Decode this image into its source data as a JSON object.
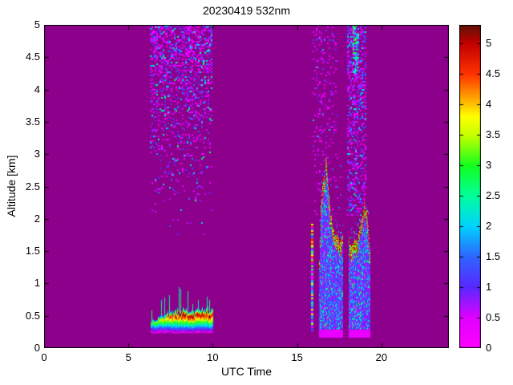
{
  "figure": {
    "background": "#ffffff",
    "axis_color": "#000000"
  },
  "chart_data": {
    "type": "heatmap",
    "title": "20230419 532nm",
    "xlabel": "UTC Time",
    "ylabel": "Altitude [km]",
    "xlim": [
      0,
      24
    ],
    "ylim": [
      0,
      5
    ],
    "xticks": [
      0,
      5,
      10,
      15,
      20
    ],
    "yticks": [
      0,
      0.5,
      1,
      1.5,
      2,
      2.5,
      3,
      3.5,
      4,
      4.5,
      5
    ],
    "background_color": "#8c008c",
    "noise_seed": 20230419,
    "colorbar": {
      "position": "right",
      "vmin": 0,
      "vmax": 5.3,
      "ticks": [
        0,
        0.5,
        1,
        1.5,
        2,
        2.5,
        3,
        3.5,
        4,
        4.5,
        5
      ]
    },
    "colormap_stops": [
      {
        "v": 0.0,
        "c": "#ff00ff"
      },
      {
        "v": 0.5,
        "c": "#e100ff"
      },
      {
        "v": 1.0,
        "c": "#5a28ff"
      },
      {
        "v": 1.5,
        "c": "#2e64ff"
      },
      {
        "v": 2.0,
        "c": "#00d2ff"
      },
      {
        "v": 2.5,
        "c": "#00ff9b"
      },
      {
        "v": 3.0,
        "c": "#14ff1e"
      },
      {
        "v": 3.5,
        "c": "#c8ff00"
      },
      {
        "v": 3.8,
        "c": "#ffff00"
      },
      {
        "v": 4.1,
        "c": "#ffa500"
      },
      {
        "v": 4.5,
        "c": "#ff3200"
      },
      {
        "v": 5.0,
        "c": "#c30000"
      },
      {
        "v": 5.3,
        "c": "#5f1207"
      }
    ],
    "features": [
      {
        "type": "speckle",
        "name": "morning-high-altitude-noise",
        "t": [
          6.25,
          9.95
        ],
        "alt": [
          1.7,
          5.0
        ],
        "density": [
          0.02,
          0.5
        ],
        "gamma": 1.6,
        "values": [
          [
            0.15,
            0.7,
            0.58
          ],
          [
            0.8,
            1.4,
            0.25
          ],
          [
            1.5,
            2.2,
            0.12
          ],
          [
            2.2,
            2.7,
            0.05
          ]
        ]
      },
      {
        "type": "speckle",
        "name": "evening-high-noise-left",
        "t": [
          15.9,
          17.45
        ],
        "alt": [
          3.05,
          5.0
        ],
        "density": [
          0.1,
          0.15
        ],
        "gamma": 1,
        "values": [
          [
            0.15,
            0.6,
            0.8
          ],
          [
            0.8,
            1.4,
            0.15
          ],
          [
            1.5,
            2.2,
            0.05
          ]
        ]
      },
      {
        "type": "speckle",
        "name": "evening-mid-specks",
        "t": [
          16.0,
          17.6
        ],
        "alt": [
          1.9,
          3.05
        ],
        "density": [
          0.05,
          0.07
        ],
        "gamma": 1,
        "values": [
          [
            0.15,
            0.6,
            0.85
          ],
          [
            0.8,
            1.6,
            0.15
          ]
        ]
      },
      {
        "type": "speckle",
        "name": "evening-high-noise-right",
        "t": [
          17.95,
          19.1
        ],
        "alt": [
          2.05,
          5.0
        ],
        "density": [
          0.32,
          0.48
        ],
        "gamma": 1,
        "values": [
          [
            0.15,
            0.7,
            0.55
          ],
          [
            0.8,
            1.5,
            0.3
          ],
          [
            1.5,
            2.3,
            0.15
          ]
        ]
      },
      {
        "type": "speckle",
        "name": "evening-cyan-streaks",
        "t": [
          18.32,
          18.62
        ],
        "alt": [
          4.25,
          5.0
        ],
        "density": [
          0.45,
          0.55
        ],
        "gamma": 1,
        "values": [
          [
            1.6,
            3.2,
            0.8
          ],
          [
            0.8,
            1.5,
            0.2
          ]
        ]
      },
      {
        "type": "layer",
        "name": "morning-surface-aerosol-layer",
        "t": [
          6.3,
          10.0
        ],
        "base": 0.26,
        "thick": [
          0.15,
          0.32
        ],
        "ramp_dur": 1.7,
        "peak": [
          3.3,
          5.1
        ],
        "peak_ramp_start": 6.4,
        "peak_ramp_dur": 1.6,
        "spike_prob": 0.16,
        "spike_max": 0.34,
        "fringe_v": [
          0.2,
          0.5
        ]
      },
      {
        "type": "column",
        "name": "isolated-return-1550utc",
        "t": [
          15.82,
          15.94
        ],
        "alt": [
          0.28,
          1.92
        ],
        "red_top_alt": 1.35
      },
      {
        "type": "cloud",
        "name": "evening-cloud-system",
        "t": [
          16.28,
          19.3
        ],
        "base": 0.3,
        "fringe": [
          0.17,
          0.3
        ],
        "gaps": [
          [
            17.7,
            18.02
          ]
        ],
        "top_profile": [
          [
            16.28,
            1.1
          ],
          [
            16.4,
            2.2
          ],
          [
            16.5,
            2.55
          ],
          [
            16.62,
            2.6
          ],
          [
            16.7,
            3.0
          ],
          [
            16.8,
            2.55
          ],
          [
            16.9,
            2.2
          ],
          [
            17.0,
            1.95
          ],
          [
            17.2,
            1.75
          ],
          [
            17.5,
            1.62
          ],
          [
            17.7,
            1.7
          ],
          [
            18.02,
            1.62
          ],
          [
            18.3,
            1.55
          ],
          [
            18.55,
            1.65
          ],
          [
            18.8,
            1.9
          ],
          [
            18.95,
            2.2
          ],
          [
            19.1,
            2.1
          ],
          [
            19.3,
            1.5
          ]
        ],
        "cap_min_alt": 1.2,
        "cap_red_prob": 0.55
      }
    ]
  }
}
